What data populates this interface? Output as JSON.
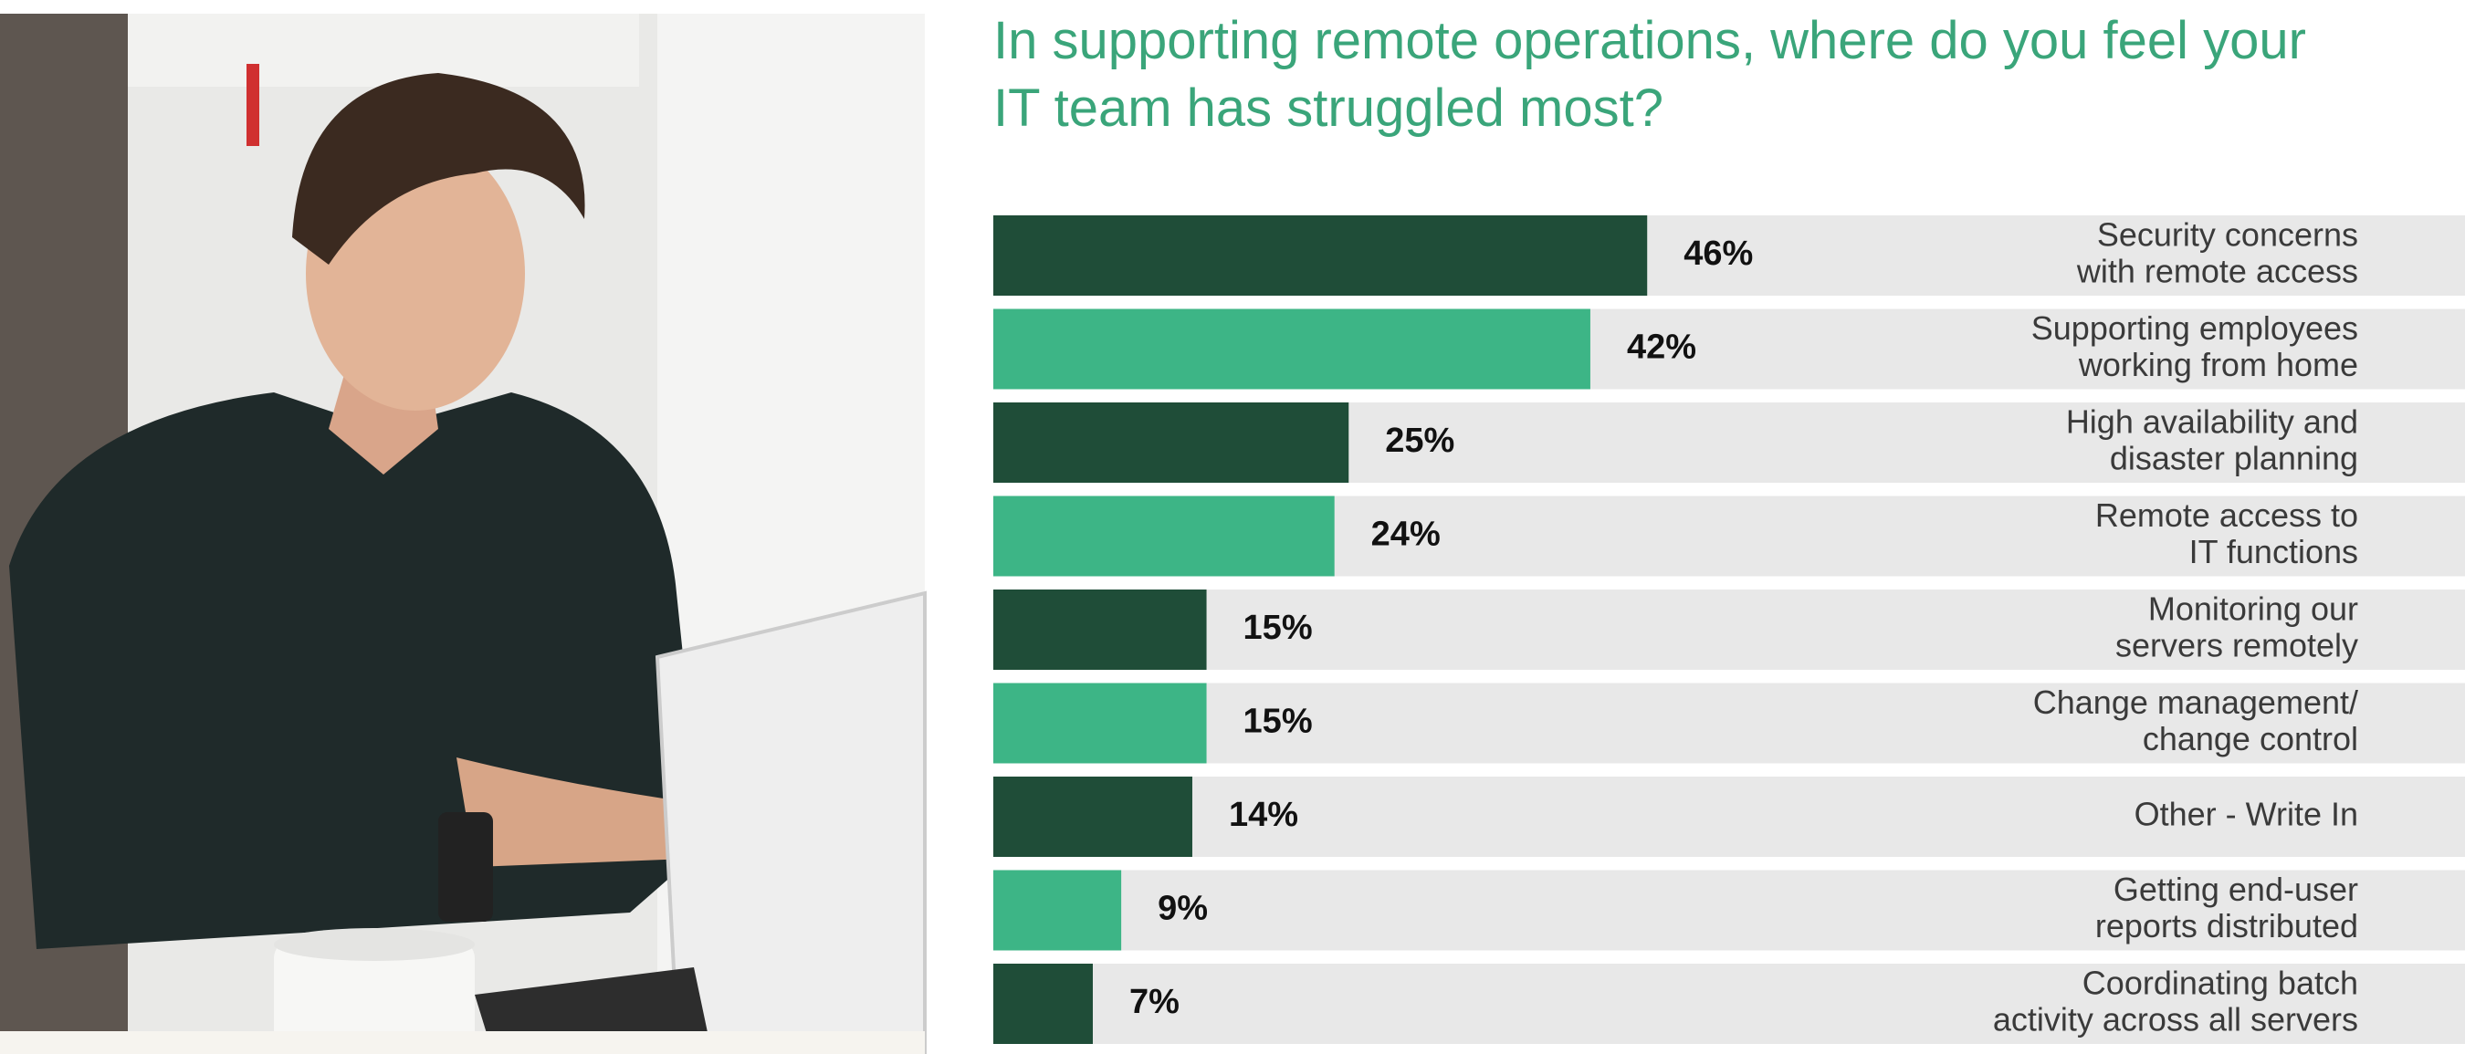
{
  "chart_data": {
    "type": "bar",
    "orientation": "horizontal",
    "title": "In supporting remote operations, where do you feel your IT team has struggled most?",
    "categories": [
      [
        "Security concerns",
        "with remote access"
      ],
      [
        "Supporting employees",
        "working from home"
      ],
      [
        "High availability and",
        "disaster planning"
      ],
      [
        "Remote access to",
        "IT functions"
      ],
      [
        "Monitoring our",
        "servers remotely"
      ],
      [
        "Change management/",
        "change control"
      ],
      [
        "Other - Write In"
      ],
      [
        "Getting end-user",
        "reports distributed"
      ],
      [
        "Coordinating batch",
        "activity across all servers"
      ]
    ],
    "values": [
      46,
      42,
      25,
      24,
      15,
      15,
      14,
      9,
      7
    ],
    "value_labels": [
      "46%",
      "42%",
      "25%",
      "24%",
      "15%",
      "15%",
      "14%",
      "9%",
      "7%"
    ],
    "colors": [
      "#1f4d38",
      "#3db586",
      "#1f4d38",
      "#3db586",
      "#1f4d38",
      "#3db586",
      "#1f4d38",
      "#3db586",
      "#1f4d38"
    ],
    "track_color": "#e8e8e8"
  }
}
